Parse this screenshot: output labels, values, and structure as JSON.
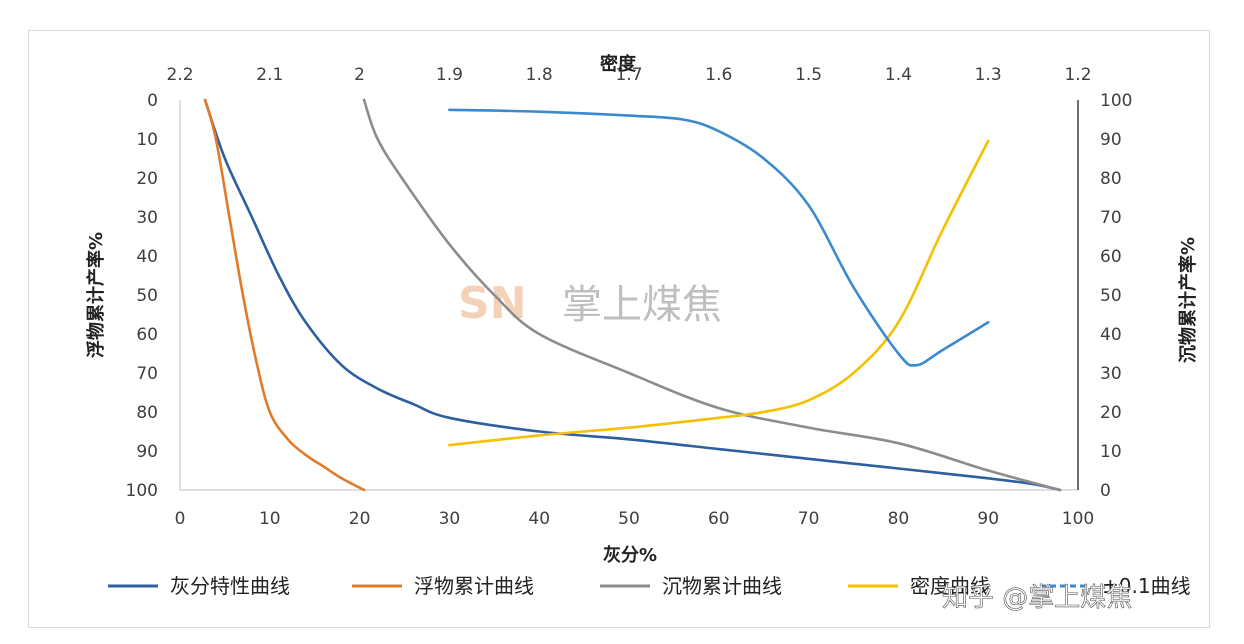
{
  "chart_data": {
    "type": "line",
    "title": "",
    "xlabel": "灰分%",
    "top_xlabel": "密度",
    "ylabel_left": "浮物累计产率%",
    "ylabel_right": "沉物累计产率%",
    "xlim": [
      0,
      100
    ],
    "top_xlim": [
      2.2,
      1.2
    ],
    "ylim_left": [
      0,
      100
    ],
    "ylim_left_inverted": true,
    "ylim_right": [
      0,
      100
    ],
    "x_ticks": [
      "0",
      "10",
      "20",
      "30",
      "40",
      "50",
      "60",
      "70",
      "80",
      "90",
      "100"
    ],
    "top_x_ticks": [
      "2.2",
      "2.1",
      "2",
      "1.9",
      "1.8",
      "1.7",
      "1.6",
      "1.5",
      "1.4",
      "1.3",
      "1.2"
    ],
    "y_left_ticks": [
      "0",
      "10",
      "20",
      "30",
      "40",
      "50",
      "60",
      "70",
      "80",
      "90",
      "100"
    ],
    "y_right_ticks": [
      "100",
      "90",
      "80",
      "70",
      "60",
      "50",
      "40",
      "30",
      "20",
      "10",
      "0"
    ],
    "grid": false,
    "legend_position": "bottom",
    "series": [
      {
        "name": "灰分特性曲线",
        "color": "#2e5f9e",
        "axis": "left",
        "x": [
          2.8,
          5,
          8,
          11,
          14,
          18,
          22,
          26,
          30,
          40,
          50,
          60,
          70,
          80,
          90,
          95,
          98
        ],
        "y": [
          0,
          15,
          30,
          45,
          57,
          68,
          74,
          78,
          81.5,
          85,
          87,
          89.5,
          92,
          94.5,
          97,
          98.5,
          100
        ]
      },
      {
        "name": "浮物累计曲线",
        "color": "#e07b2a",
        "axis": "left",
        "x": [
          2.8,
          4,
          5.5,
          7,
          8.5,
          10,
          12,
          14,
          16,
          18,
          20.5
        ],
        "y": [
          0,
          10,
          30,
          50,
          67,
          80,
          87,
          91,
          94,
          97,
          100
        ]
      },
      {
        "name": "沉物累计曲线",
        "color": "#8c8c8c",
        "axis": "right",
        "x": [
          20.5,
          22,
          25,
          30,
          35,
          40,
          50,
          60,
          70,
          80,
          90,
          98
        ],
        "y": [
          100,
          90,
          79,
          63,
          50,
          40,
          30,
          21,
          16,
          12,
          5,
          0
        ]
      },
      {
        "name": "密度曲线",
        "color": "#f5c000",
        "axis": "left",
        "x": [
          30,
          40,
          50,
          60,
          65,
          70,
          75,
          80,
          85,
          90
        ],
        "y": [
          88.5,
          86,
          84,
          81.5,
          80,
          77,
          70,
          57,
          33,
          10.5
        ]
      },
      {
        "name": "±0.1曲线",
        "color": "#3a8ad0",
        "axis": "right",
        "x": [
          30,
          40,
          50,
          56,
          60,
          65,
          70,
          75,
          80,
          82,
          85,
          90
        ],
        "y": [
          97.5,
          97,
          96,
          95,
          92,
          85,
          73,
          52,
          35,
          32,
          36,
          43
        ]
      }
    ]
  },
  "watermarks": {
    "center_logo": "SN",
    "center_text": "掌上煤焦",
    "corner_text": "知乎 @掌上煤焦"
  }
}
